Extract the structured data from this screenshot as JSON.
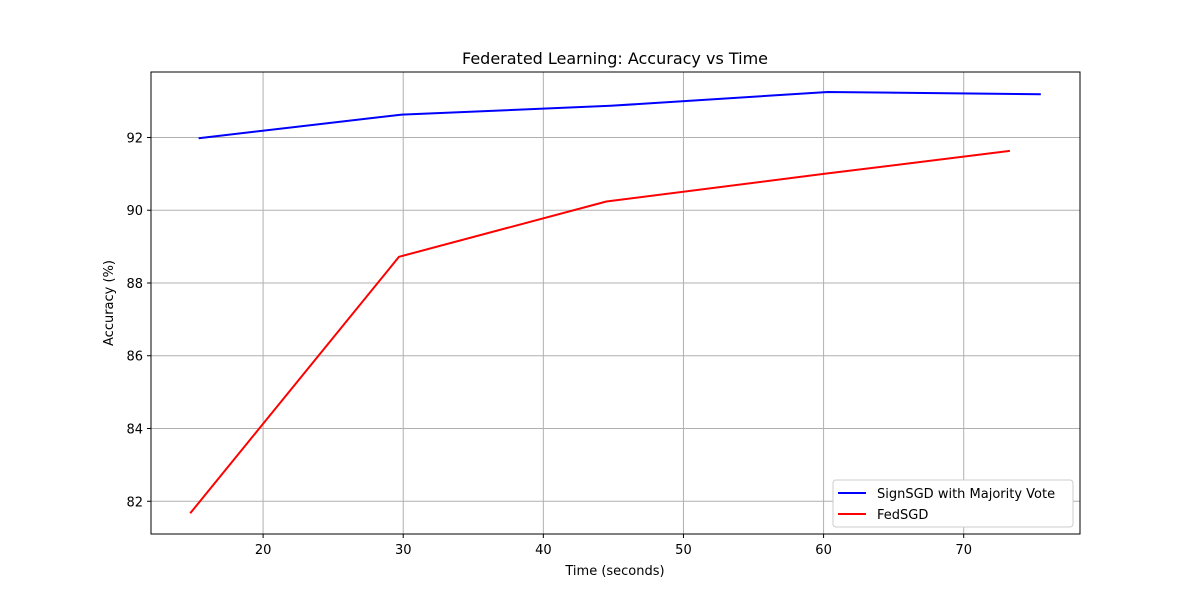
{
  "chart_data": {
    "type": "line",
    "title": "Federated Learning: Accuracy vs Time",
    "xlabel": "Time (seconds)",
    "ylabel": "Accuracy (%)",
    "xlim": [
      12.0,
      78.3
    ],
    "ylim": [
      81.1,
      93.8
    ],
    "xticks": [
      20,
      30,
      40,
      50,
      60,
      70
    ],
    "yticks": [
      82,
      84,
      86,
      88,
      90,
      92
    ],
    "grid": true,
    "legend_position": "lower-right",
    "series": [
      {
        "name": "SignSGD with Majority Vote",
        "color": "#0000ff",
        "x": [
          15.4,
          29.9,
          44.8,
          60.3,
          75.5
        ],
        "y": [
          91.98,
          92.63,
          92.87,
          93.25,
          93.19
        ]
      },
      {
        "name": "FedSGD",
        "color": "#ff0000",
        "x": [
          14.8,
          29.7,
          44.5,
          60.0,
          73.3
        ],
        "y": [
          81.67,
          88.72,
          90.24,
          91.0,
          91.63
        ]
      }
    ]
  }
}
